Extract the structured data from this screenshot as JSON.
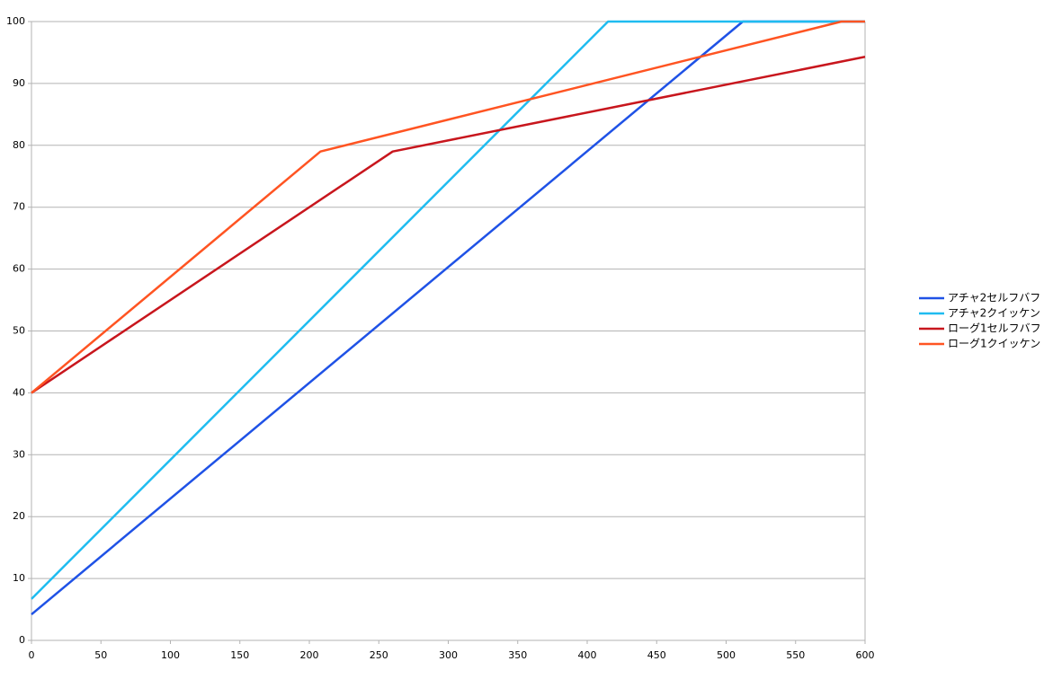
{
  "chart_data": {
    "type": "line",
    "series": [
      {
        "name": "アチャ2セルフバフ",
        "color": "#1f52e6",
        "x": [
          0,
          512,
          600
        ],
        "values": [
          4.2,
          100,
          100
        ]
      },
      {
        "name": "アチャ2クイッケン",
        "color": "#1fbcf0",
        "x": [
          0,
          415,
          600
        ],
        "values": [
          6.7,
          100,
          100
        ]
      },
      {
        "name": "ローグ1セルフバフ",
        "color": "#c8161d",
        "x": [
          0,
          260,
          600
        ],
        "values": [
          40,
          79,
          94.3
        ]
      },
      {
        "name": "ローグ1クイッケン",
        "color": "#ff5422",
        "x": [
          0,
          208,
          583,
          600
        ],
        "values": [
          40,
          79,
          100,
          100
        ]
      }
    ],
    "xlim": [
      0,
      600
    ],
    "xticks": [
      0,
      50,
      100,
      150,
      200,
      250,
      300,
      350,
      400,
      450,
      500,
      550,
      600
    ],
    "ylim": [
      0,
      100
    ],
    "yticks": [
      0,
      10,
      20,
      30,
      40,
      50,
      60,
      70,
      80,
      90,
      100
    ],
    "grid": true,
    "legend": "right"
  }
}
